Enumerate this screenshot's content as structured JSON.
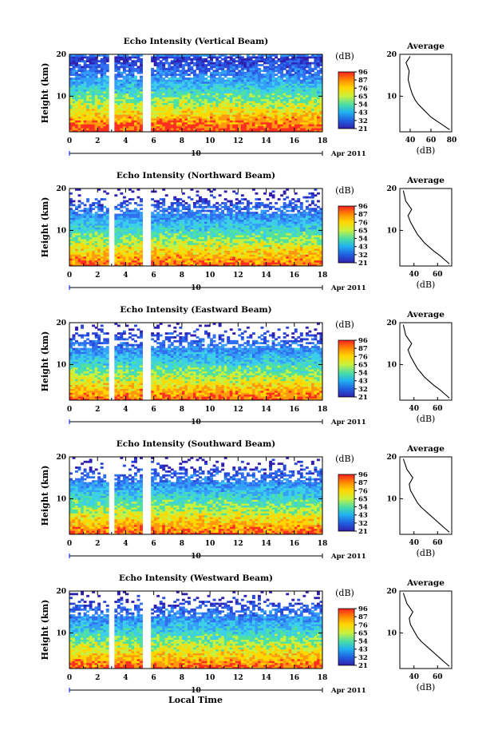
{
  "figure": {
    "xlabel": "Local Time",
    "date_label": "Apr 2011",
    "day_label": "10",
    "colorbar_unit": "(dB)",
    "colorbar_ticks": [
      "96",
      "87",
      "76",
      "65",
      "54",
      "43",
      "32",
      "21"
    ],
    "colorbar_colors": [
      "#ff2020",
      "#ff8a00",
      "#ffd800",
      "#c8f040",
      "#50e0a0",
      "#20b0f0",
      "#2060e0",
      "#3020b0"
    ],
    "profile_title": "Average",
    "profile_xlabel": "(dB)"
  },
  "chart_data": [
    {
      "type": "heatmap",
      "title": "Echo Intensity (Vertical Beam)",
      "ylabel": "Height (km)",
      "xlabel": "",
      "xlim": [
        0,
        18
      ],
      "ylim": [
        1.5,
        20
      ],
      "xticks": [
        "0",
        "2",
        "4",
        "6",
        "8",
        "10",
        "12",
        "14",
        "16",
        "18"
      ],
      "yticks": [
        "10",
        "20"
      ],
      "data_gaps_local_time": [
        [
          2.7,
          3.2
        ],
        [
          5.2,
          5.8
        ]
      ],
      "profile": {
        "type": "line",
        "title": "Average",
        "xlabel": "(dB)",
        "xlim": [
          30,
          80
        ],
        "ylim": [
          1.5,
          20
        ],
        "xticks": [
          "40",
          "60",
          "80"
        ],
        "yticks": [
          "10",
          "20"
        ],
        "x": [
          78,
          72,
          66,
          60,
          56,
          52,
          48,
          45,
          42,
          40,
          38,
          39,
          36,
          40
        ],
        "y": [
          2,
          3,
          4,
          5,
          6,
          7,
          8,
          9,
          10.5,
          12,
          14,
          16,
          18,
          19.5
        ]
      }
    },
    {
      "type": "heatmap",
      "title": "Echo Intensity (Northward Beam)",
      "ylabel": "Height (km)",
      "xlabel": "",
      "xlim": [
        0,
        18
      ],
      "ylim": [
        1.5,
        20
      ],
      "xticks": [
        "0",
        "2",
        "4",
        "6",
        "8",
        "10",
        "12",
        "14",
        "16",
        "18"
      ],
      "yticks": [
        "10",
        "20"
      ],
      "data_gaps_local_time": [
        [
          2.7,
          3.2
        ],
        [
          5.2,
          5.8
        ]
      ],
      "profile": {
        "type": "line",
        "title": "Average",
        "xlabel": "(dB)",
        "xlim": [
          28,
          72
        ],
        "ylim": [
          1.5,
          20
        ],
        "xticks": [
          "40",
          "60"
        ],
        "yticks": [
          "10",
          "20"
        ],
        "x": [
          70,
          66,
          62,
          57,
          53,
          49,
          46,
          43,
          40,
          37,
          35,
          38,
          33,
          31
        ],
        "y": [
          2,
          3,
          4,
          5,
          6,
          7,
          8,
          9,
          10.5,
          12,
          13.5,
          15,
          17,
          19.5
        ]
      }
    },
    {
      "type": "heatmap",
      "title": "Echo Intensity (Eastward Beam)",
      "ylabel": "Height (km)",
      "xlabel": "",
      "xlim": [
        0,
        18
      ],
      "ylim": [
        1.5,
        20
      ],
      "xticks": [
        "0",
        "2",
        "4",
        "6",
        "8",
        "10",
        "12",
        "14",
        "16",
        "18"
      ],
      "yticks": [
        "10",
        "20"
      ],
      "data_gaps_local_time": [
        [
          2.7,
          3.2
        ],
        [
          5.2,
          5.8
        ]
      ],
      "profile": {
        "type": "line",
        "title": "Average",
        "xlabel": "(dB)",
        "xlim": [
          28,
          72
        ],
        "ylim": [
          1.5,
          20
        ],
        "xticks": [
          "40",
          "60"
        ],
        "yticks": [
          "10",
          "20"
        ],
        "x": [
          70,
          66,
          62,
          57,
          53,
          49,
          46,
          43,
          40,
          37,
          35,
          38,
          33,
          31
        ],
        "y": [
          2,
          3,
          4,
          5,
          6,
          7,
          8,
          9,
          10.5,
          12,
          13.5,
          15,
          17,
          19.5
        ]
      }
    },
    {
      "type": "heatmap",
      "title": "Echo Intensity (Southward Beam)",
      "ylabel": "Height (km)",
      "xlabel": "",
      "xlim": [
        0,
        18
      ],
      "ylim": [
        1.5,
        20
      ],
      "xticks": [
        "0",
        "2",
        "4",
        "6",
        "8",
        "10",
        "12",
        "14",
        "16",
        "18"
      ],
      "yticks": [
        "10",
        "20"
      ],
      "data_gaps_local_time": [
        [
          2.7,
          3.2
        ],
        [
          5.2,
          5.8
        ]
      ],
      "profile": {
        "type": "line",
        "title": "Average",
        "xlabel": "(dB)",
        "xlim": [
          28,
          72
        ],
        "ylim": [
          1.5,
          20
        ],
        "xticks": [
          "40",
          "60"
        ],
        "yticks": [
          "10",
          "20"
        ],
        "x": [
          70,
          66,
          62,
          58,
          54,
          50,
          46,
          43,
          40,
          37,
          36,
          39,
          34,
          31
        ],
        "y": [
          2,
          3,
          4,
          5,
          6,
          7,
          8,
          9,
          10.5,
          12,
          13.5,
          15,
          17,
          19.5
        ]
      }
    },
    {
      "type": "heatmap",
      "title": "Echo Intensity (Westward Beam)",
      "ylabel": "Height (km)",
      "xlabel": "Local Time",
      "xlim": [
        0,
        18
      ],
      "ylim": [
        1.5,
        20
      ],
      "xticks": [
        "0",
        "2",
        "4",
        "6",
        "8",
        "10",
        "12",
        "14",
        "16",
        "18"
      ],
      "yticks": [
        "10",
        "20"
      ],
      "data_gaps_local_time": [
        [
          2.7,
          3.2
        ],
        [
          5.2,
          5.8
        ]
      ],
      "profile": {
        "type": "line",
        "title": "Average",
        "xlabel": "(dB)",
        "xlim": [
          28,
          72
        ],
        "ylim": [
          1.5,
          20
        ],
        "xticks": [
          "40",
          "60"
        ],
        "yticks": [
          "10",
          "20"
        ],
        "x": [
          70,
          66,
          62,
          58,
          54,
          50,
          46,
          43,
          40,
          37,
          36,
          39,
          34,
          31
        ],
        "y": [
          2,
          3,
          4,
          5,
          6,
          7,
          8,
          9,
          10.5,
          12,
          13.5,
          15,
          17,
          19.5
        ]
      }
    }
  ]
}
